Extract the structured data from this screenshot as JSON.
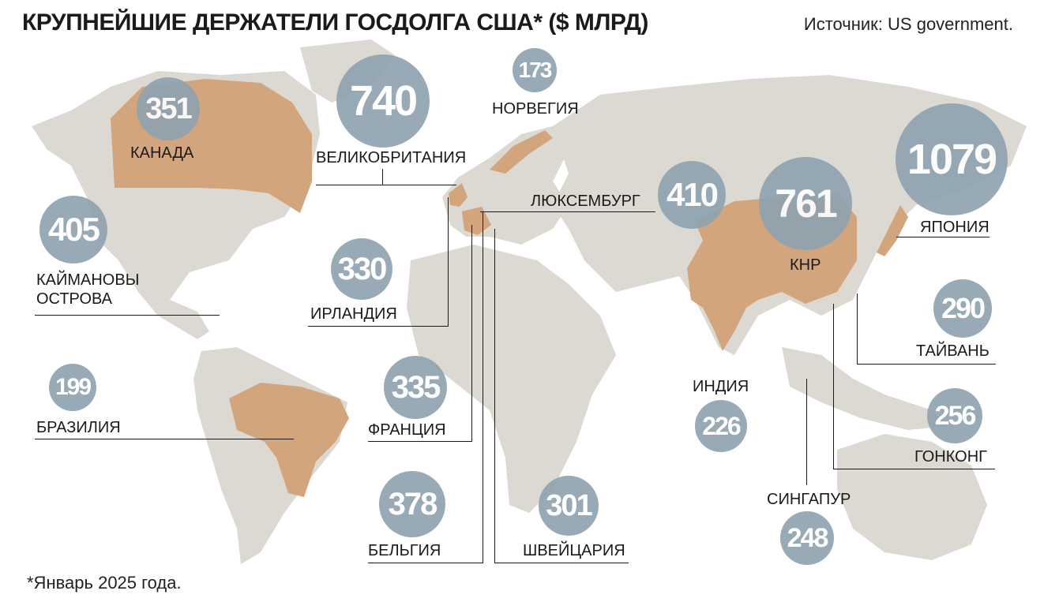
{
  "title": "КРУПНЕЙШИЕ ДЕРЖАТЕЛИ ГОСДОЛГА США* ($ МЛРД)",
  "source": "Источник: US government.",
  "footnote": "*Январь 2025 года.",
  "colors": {
    "bubble": "#8fa3b0",
    "highlight": "#d2a57c",
    "land": "#dcd9d2"
  },
  "holders": [
    {
      "id": "japan",
      "name": "ЯПОНИЯ",
      "value": 1079
    },
    {
      "id": "china",
      "name": "КНР",
      "value": 761
    },
    {
      "id": "uk",
      "name": "ВЕЛИКОБРИТАНИЯ",
      "value": 740
    },
    {
      "id": "luxembourg",
      "name": "ЛЮКСЕМБУРГ",
      "value": 410
    },
    {
      "id": "cayman",
      "name": "КАЙМАНОВЫ ОСТРОВА",
      "value": 405
    },
    {
      "id": "belgium",
      "name": "БЕЛЬГИЯ",
      "value": 378
    },
    {
      "id": "canada",
      "name": "КАНАДА",
      "value": 351
    },
    {
      "id": "france",
      "name": "ФРАНЦИЯ",
      "value": 335
    },
    {
      "id": "ireland",
      "name": "ИРЛАНДИЯ",
      "value": 330
    },
    {
      "id": "switzerland",
      "name": "ШВЕЙЦАРИЯ",
      "value": 301
    },
    {
      "id": "taiwan",
      "name": "ТАЙВАНЬ",
      "value": 290
    },
    {
      "id": "hongkong",
      "name": "ГОНКОНГ",
      "value": 256
    },
    {
      "id": "singapore",
      "name": "СИНГАПУР",
      "value": 248
    },
    {
      "id": "india",
      "name": "ИНДИЯ",
      "value": 226
    },
    {
      "id": "brazil",
      "name": "БРАЗИЛИЯ",
      "value": 199
    },
    {
      "id": "norway",
      "name": "НОРВЕГИЯ",
      "value": 173
    }
  ]
}
